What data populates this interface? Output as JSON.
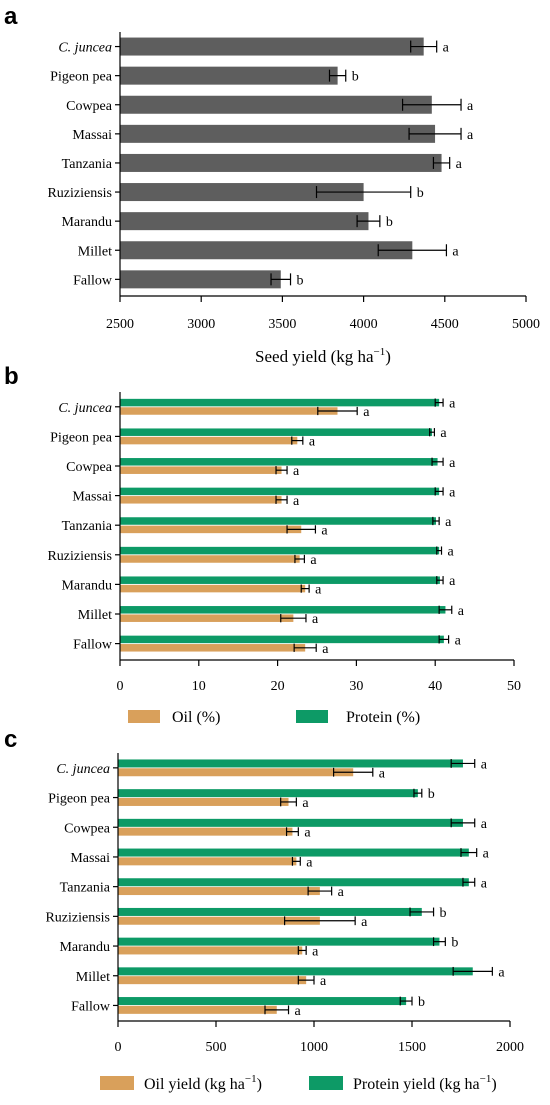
{
  "colors": {
    "dark": "#5e5e5e",
    "oil": "#d9a05b",
    "protein": "#0d9a66"
  },
  "chart_data": [
    {
      "panel": "a",
      "type": "bar",
      "orientation": "horizontal",
      "categories": [
        "C. juncea",
        "Pigeon pea",
        "Cowpea",
        "Massai",
        "Tanzania",
        "Ruziziensis",
        "Marandu",
        "Millet",
        "Fallow"
      ],
      "series": [
        {
          "values": [
            4370,
            3840,
            4420,
            4440,
            4480,
            4000,
            4030,
            4300,
            3490
          ],
          "errors": [
            80,
            50,
            180,
            160,
            50,
            290,
            70,
            210,
            60
          ],
          "letters": [
            "a",
            "b",
            "a",
            "a",
            "a",
            "b",
            "b",
            "a",
            "b"
          ]
        }
      ],
      "xlabel": "Seed yield (kg ha",
      "xlabel_sup": "−1",
      "xlabel_close": ")",
      "xlim": [
        2500,
        5000
      ],
      "xticks": [
        "2500",
        "3000",
        "3500",
        "4000",
        "4500",
        "5000"
      ],
      "grid": false
    },
    {
      "panel": "b",
      "type": "bar",
      "orientation": "horizontal",
      "categories": [
        "C. juncea",
        "Pigeon pea",
        "Cowpea",
        "Massai",
        "Tanzania",
        "Ruziziensis",
        "Marandu",
        "Millet",
        "Fallow"
      ],
      "series": [
        {
          "name": "Protein (%)",
          "values": [
            40.5,
            39.6,
            40.3,
            40.5,
            40.1,
            40.5,
            40.6,
            41.3,
            41.1
          ],
          "errors": [
            0.5,
            0.3,
            0.7,
            0.5,
            0.4,
            0.3,
            0.4,
            0.8,
            0.6
          ],
          "letters": [
            "a",
            "a",
            "a",
            "a",
            "a",
            "a",
            "a",
            "a",
            "a"
          ]
        },
        {
          "name": "Oil (%)",
          "values": [
            27.6,
            22.5,
            20.5,
            20.5,
            23.0,
            22.8,
            23.5,
            22.0,
            23.5
          ],
          "errors": [
            2.5,
            0.7,
            0.7,
            0.7,
            1.8,
            0.6,
            0.5,
            1.6,
            1.4
          ],
          "letters": [
            "a",
            "a",
            "a",
            "a",
            "a",
            "a",
            "a",
            "a",
            "a"
          ]
        }
      ],
      "xlim": [
        0,
        50
      ],
      "xticks": [
        "0",
        "10",
        "20",
        "30",
        "40",
        "50"
      ],
      "legend": [
        "Oil (%)",
        "Protein (%)"
      ],
      "legend_position": "bottom",
      "grid": false
    },
    {
      "panel": "c",
      "type": "bar",
      "orientation": "horizontal",
      "categories": [
        "C. juncea",
        "Pigeon pea",
        "Cowpea",
        "Massai",
        "Tanzania",
        "Ruziziensis",
        "Marandu",
        "Millet",
        "Fallow"
      ],
      "series": [
        {
          "name": "Protein yield (kg ha−1)",
          "values": [
            1760,
            1530,
            1760,
            1790,
            1790,
            1550,
            1640,
            1810,
            1470
          ],
          "errors": [
            60,
            20,
            60,
            40,
            30,
            60,
            30,
            100,
            30
          ],
          "letters": [
            "a",
            "b",
            "a",
            "a",
            "a",
            "b",
            "b",
            "a",
            "b"
          ]
        },
        {
          "name": "Oil yield (kg ha−1)",
          "values": [
            1200,
            870,
            890,
            910,
            1030,
            1030,
            940,
            960,
            810
          ],
          "errors": [
            100,
            40,
            30,
            20,
            60,
            180,
            20,
            40,
            60
          ],
          "letters": [
            "a",
            "a",
            "a",
            "a",
            "a",
            "a",
            "a",
            "a",
            "a"
          ]
        }
      ],
      "xlim": [
        0,
        2000
      ],
      "xticks": [
        "0",
        "500",
        "1000",
        "1500",
        "2000"
      ],
      "legend": [
        "Oil yield (kg ha",
        "Protein yield (kg ha"
      ],
      "legend_sup": "−1",
      "legend_close": ")",
      "legend_position": "bottom",
      "grid": false
    }
  ]
}
